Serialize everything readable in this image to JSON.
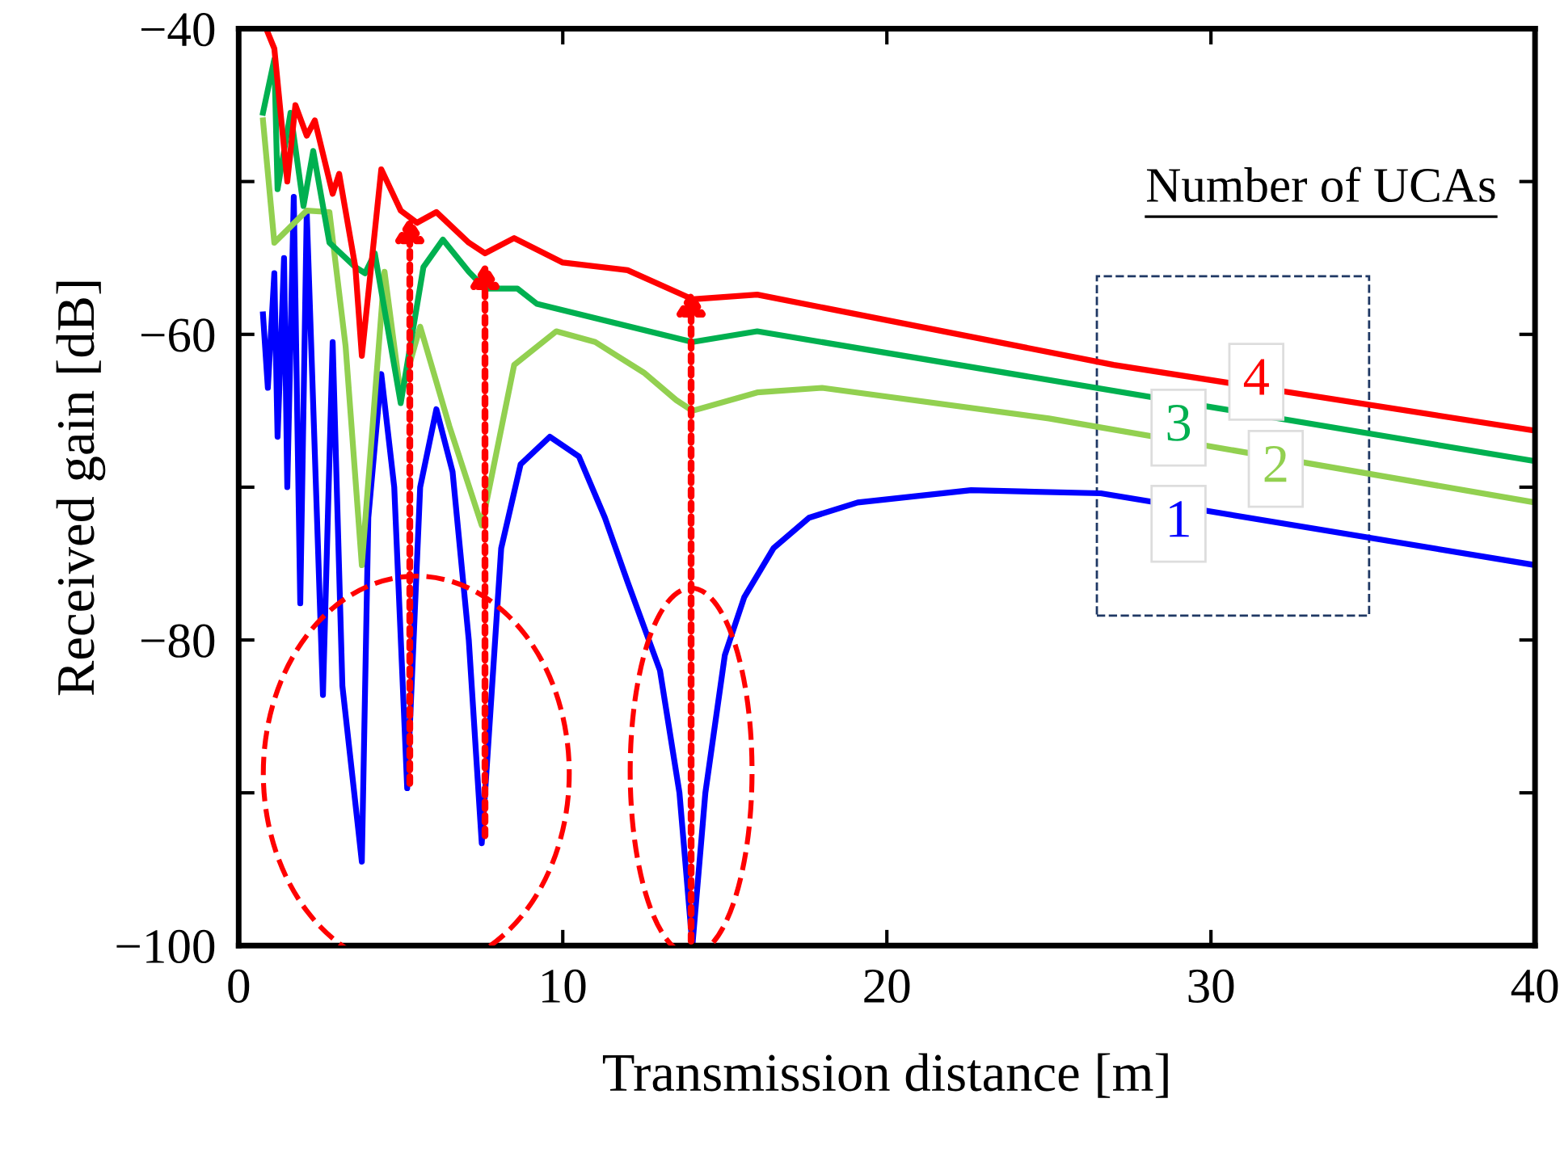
{
  "chart_data": {
    "type": "line",
    "xlabel": "Transmission distance [m]",
    "ylabel": "Received gain [dB]",
    "legend_title": "Number of UCAs",
    "xlim": [
      0,
      40
    ],
    "ylim": [
      -100,
      -40
    ],
    "xticks": [
      0,
      10,
      20,
      30,
      40
    ],
    "yticks": [
      -100,
      {
        "value": -90,
        "label": null
      },
      -80,
      {
        "value": -70,
        "label": null
      },
      -60,
      {
        "value": -50,
        "label": null
      },
      -40
    ],
    "grid": false,
    "marker": "none",
    "line_style": "solid",
    "series": [
      {
        "name": "1",
        "color": "#0000ff",
        "x": [
          0.75,
          0.9,
          1.1,
          1.2,
          1.4,
          1.5,
          1.7,
          1.9,
          2.1,
          2.6,
          2.9,
          3.2,
          3.8,
          4.0,
          4.4,
          4.8,
          5.2,
          5.6,
          6.1,
          6.6,
          7.1,
          7.5,
          8.1,
          8.7,
          9.6,
          10.5,
          11.3,
          12.0,
          13.0,
          13.6,
          14.0,
          14.4,
          15.0,
          15.6,
          16.5,
          17.6,
          19.1,
          22.6,
          26.6,
          40
        ],
        "values": [
          -58.7,
          -63.5,
          -56,
          -66.7,
          -55,
          -70,
          -51,
          -77.6,
          -52,
          -83.6,
          -60.5,
          -83,
          -94.5,
          -72,
          -62.6,
          -70,
          -89.7,
          -70,
          -64.9,
          -69,
          -80,
          -93.3,
          -74,
          -68.5,
          -66.7,
          -68,
          -72,
          -76.2,
          -82,
          -90,
          -100,
          -90,
          -81,
          -77.2,
          -74,
          -72,
          -71,
          -70.2,
          -70.4,
          -75.1
        ]
      },
      {
        "name": "2",
        "color": "#92d050",
        "x": [
          0.75,
          1.1,
          2.1,
          2.8,
          3.3,
          3.8,
          4.5,
          5.0,
          5.6,
          6.5,
          7.5,
          8.5,
          9.8,
          11,
          12.5,
          13.5,
          14.0,
          16,
          18,
          25,
          40
        ],
        "values": [
          -46,
          -54,
          -51.9,
          -52,
          -60.8,
          -75.1,
          -55.9,
          -64,
          -59.5,
          -66,
          -72.5,
          -62,
          -59.8,
          -60.5,
          -62.5,
          -64.3,
          -65,
          -63.8,
          -63.5,
          -65.5,
          -71
        ]
      },
      {
        "name": "3",
        "color": "#00b050",
        "x": [
          0.75,
          1.1,
          1.2,
          1.6,
          2.0,
          2.3,
          2.8,
          3.6,
          3.9,
          4.2,
          5.0,
          5.7,
          6.3,
          7.1,
          7.6,
          8.6,
          9.2,
          14.0,
          16,
          40
        ],
        "values": [
          -45.5,
          -42,
          -50.5,
          -45.5,
          -51.6,
          -48,
          -54,
          -55.6,
          -56,
          -54.7,
          -64.5,
          -55.6,
          -53.8,
          -55.9,
          -57,
          -57,
          -58,
          -60.5,
          -59.8,
          -68.3
        ]
      },
      {
        "name": "4",
        "color": "#ff0000",
        "x": [
          0.85,
          1.1,
          1.5,
          1.75,
          2.1,
          2.35,
          2.9,
          3.1,
          3.6,
          3.8,
          4.4,
          5.0,
          5.5,
          6.1,
          7.1,
          7.6,
          8.5,
          10,
          12,
          14.0,
          16,
          27,
          40
        ],
        "values": [
          -40,
          -41.3,
          -50,
          -45,
          -47,
          -46,
          -50.8,
          -49.5,
          -55.6,
          -61.4,
          -49.2,
          -51.9,
          -52.7,
          -52,
          -54,
          -54.7,
          -53.7,
          -55.3,
          -55.8,
          -57.7,
          -57.4,
          -62,
          -66.3
        ]
      }
    ]
  }
}
